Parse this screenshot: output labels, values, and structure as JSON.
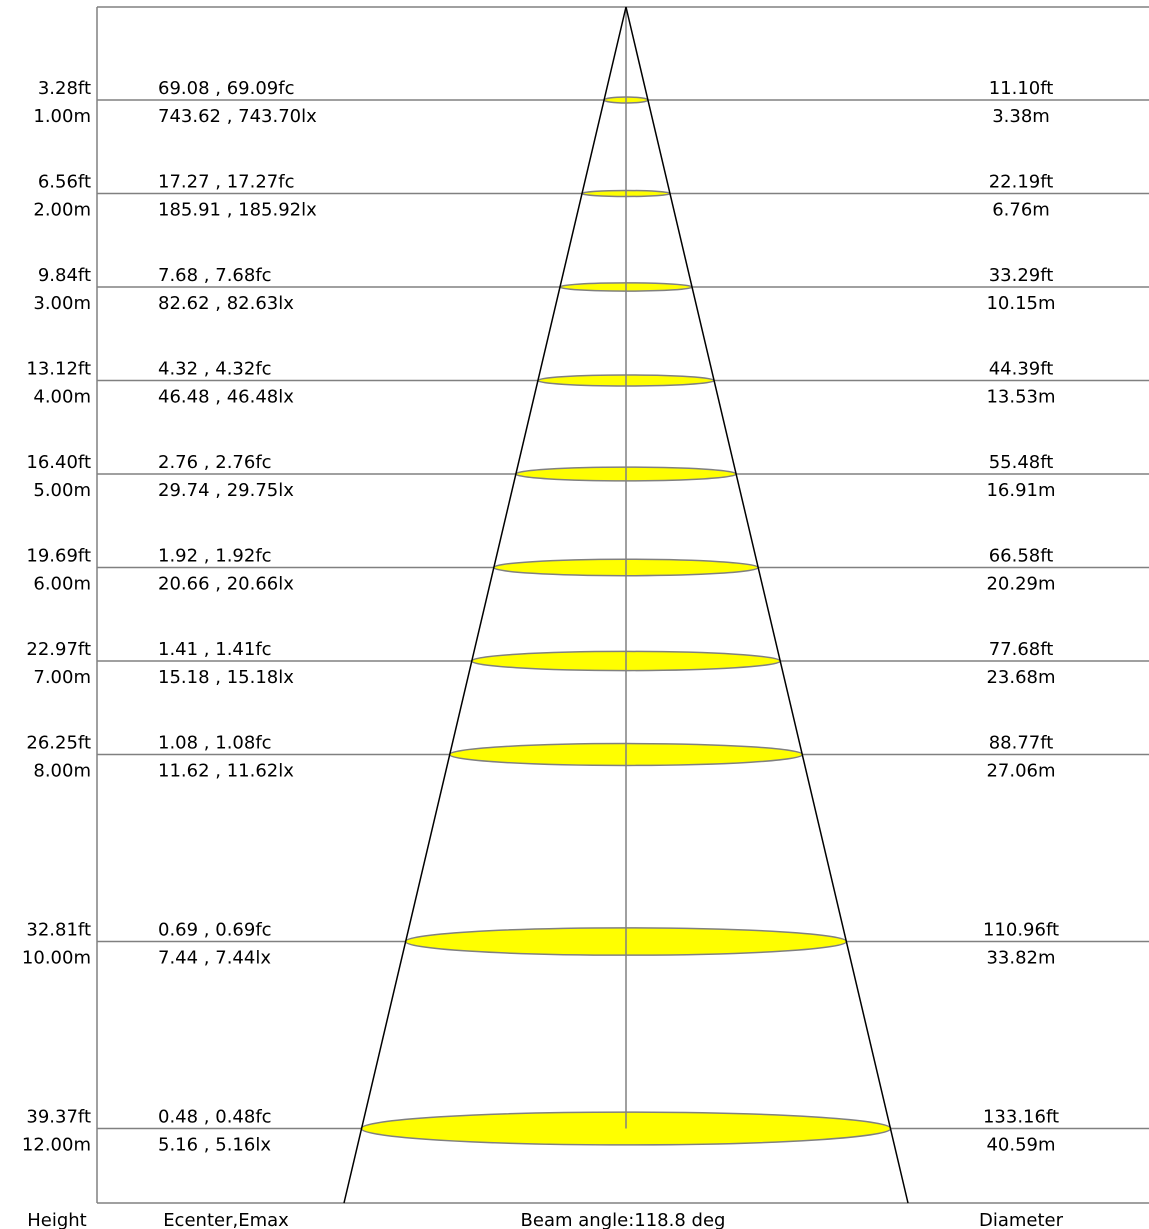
{
  "colors": {
    "background": "#ffffff",
    "frame": "#808080",
    "guide": "#808080",
    "cone": "#000000",
    "spot_fill": "#ffff00",
    "spot_stroke": "#808080",
    "text": "#000000"
  },
  "footer": {
    "height": "Height",
    "illuminance": "Ecenter,Emax",
    "beam_angle": "Beam angle:118.8 deg",
    "diameter": "Diameter"
  },
  "chart_data": {
    "type": "table",
    "beam_angle_deg": 118.8,
    "columns": [
      "Height",
      "Ecenter,Emax",
      "Diameter"
    ],
    "rows": [
      {
        "height_ft": "3.28ft",
        "height_m": "1.00m",
        "fc": "69.08 , 69.09fc",
        "lx": "743.62 , 743.70lx",
        "dia_ft": "11.10ft",
        "dia_m": "3.38m"
      },
      {
        "height_ft": "6.56ft",
        "height_m": "2.00m",
        "fc": "17.27 , 17.27fc",
        "lx": "185.91 , 185.92lx",
        "dia_ft": "22.19ft",
        "dia_m": "6.76m"
      },
      {
        "height_ft": "9.84ft",
        "height_m": "3.00m",
        "fc": "7.68 , 7.68fc",
        "lx": "82.62 , 82.63lx",
        "dia_ft": "33.29ft",
        "dia_m": "10.15m"
      },
      {
        "height_ft": "13.12ft",
        "height_m": "4.00m",
        "fc": "4.32 , 4.32fc",
        "lx": "46.48 , 46.48lx",
        "dia_ft": "44.39ft",
        "dia_m": "13.53m"
      },
      {
        "height_ft": "16.40ft",
        "height_m": "5.00m",
        "fc": "2.76 , 2.76fc",
        "lx": "29.74 , 29.75lx",
        "dia_ft": "55.48ft",
        "dia_m": "16.91m"
      },
      {
        "height_ft": "19.69ft",
        "height_m": "6.00m",
        "fc": "1.92 , 1.92fc",
        "lx": "20.66 , 20.66lx",
        "dia_ft": "66.58ft",
        "dia_m": "20.29m"
      },
      {
        "height_ft": "22.97ft",
        "height_m": "7.00m",
        "fc": "1.41 , 1.41fc",
        "lx": "15.18 , 15.18lx",
        "dia_ft": "77.68ft",
        "dia_m": "23.68m"
      },
      {
        "height_ft": "26.25ft",
        "height_m": "8.00m",
        "fc": "1.08 , 1.08fc",
        "lx": "11.62 , 11.62lx",
        "dia_ft": "88.77ft",
        "dia_m": "27.06m"
      },
      {
        "height_ft": "32.81ft",
        "height_m": "10.00m",
        "fc": "0.69 , 0.69fc",
        "lx": "7.44 , 7.44lx",
        "dia_ft": "110.96ft",
        "dia_m": "33.82m"
      },
      {
        "height_ft": "39.37ft",
        "height_m": "12.00m",
        "fc": "0.48 , 0.48fc",
        "lx": "5.16 , 5.16lx",
        "dia_ft": "133.16ft",
        "dia_m": "40.59m"
      }
    ]
  }
}
